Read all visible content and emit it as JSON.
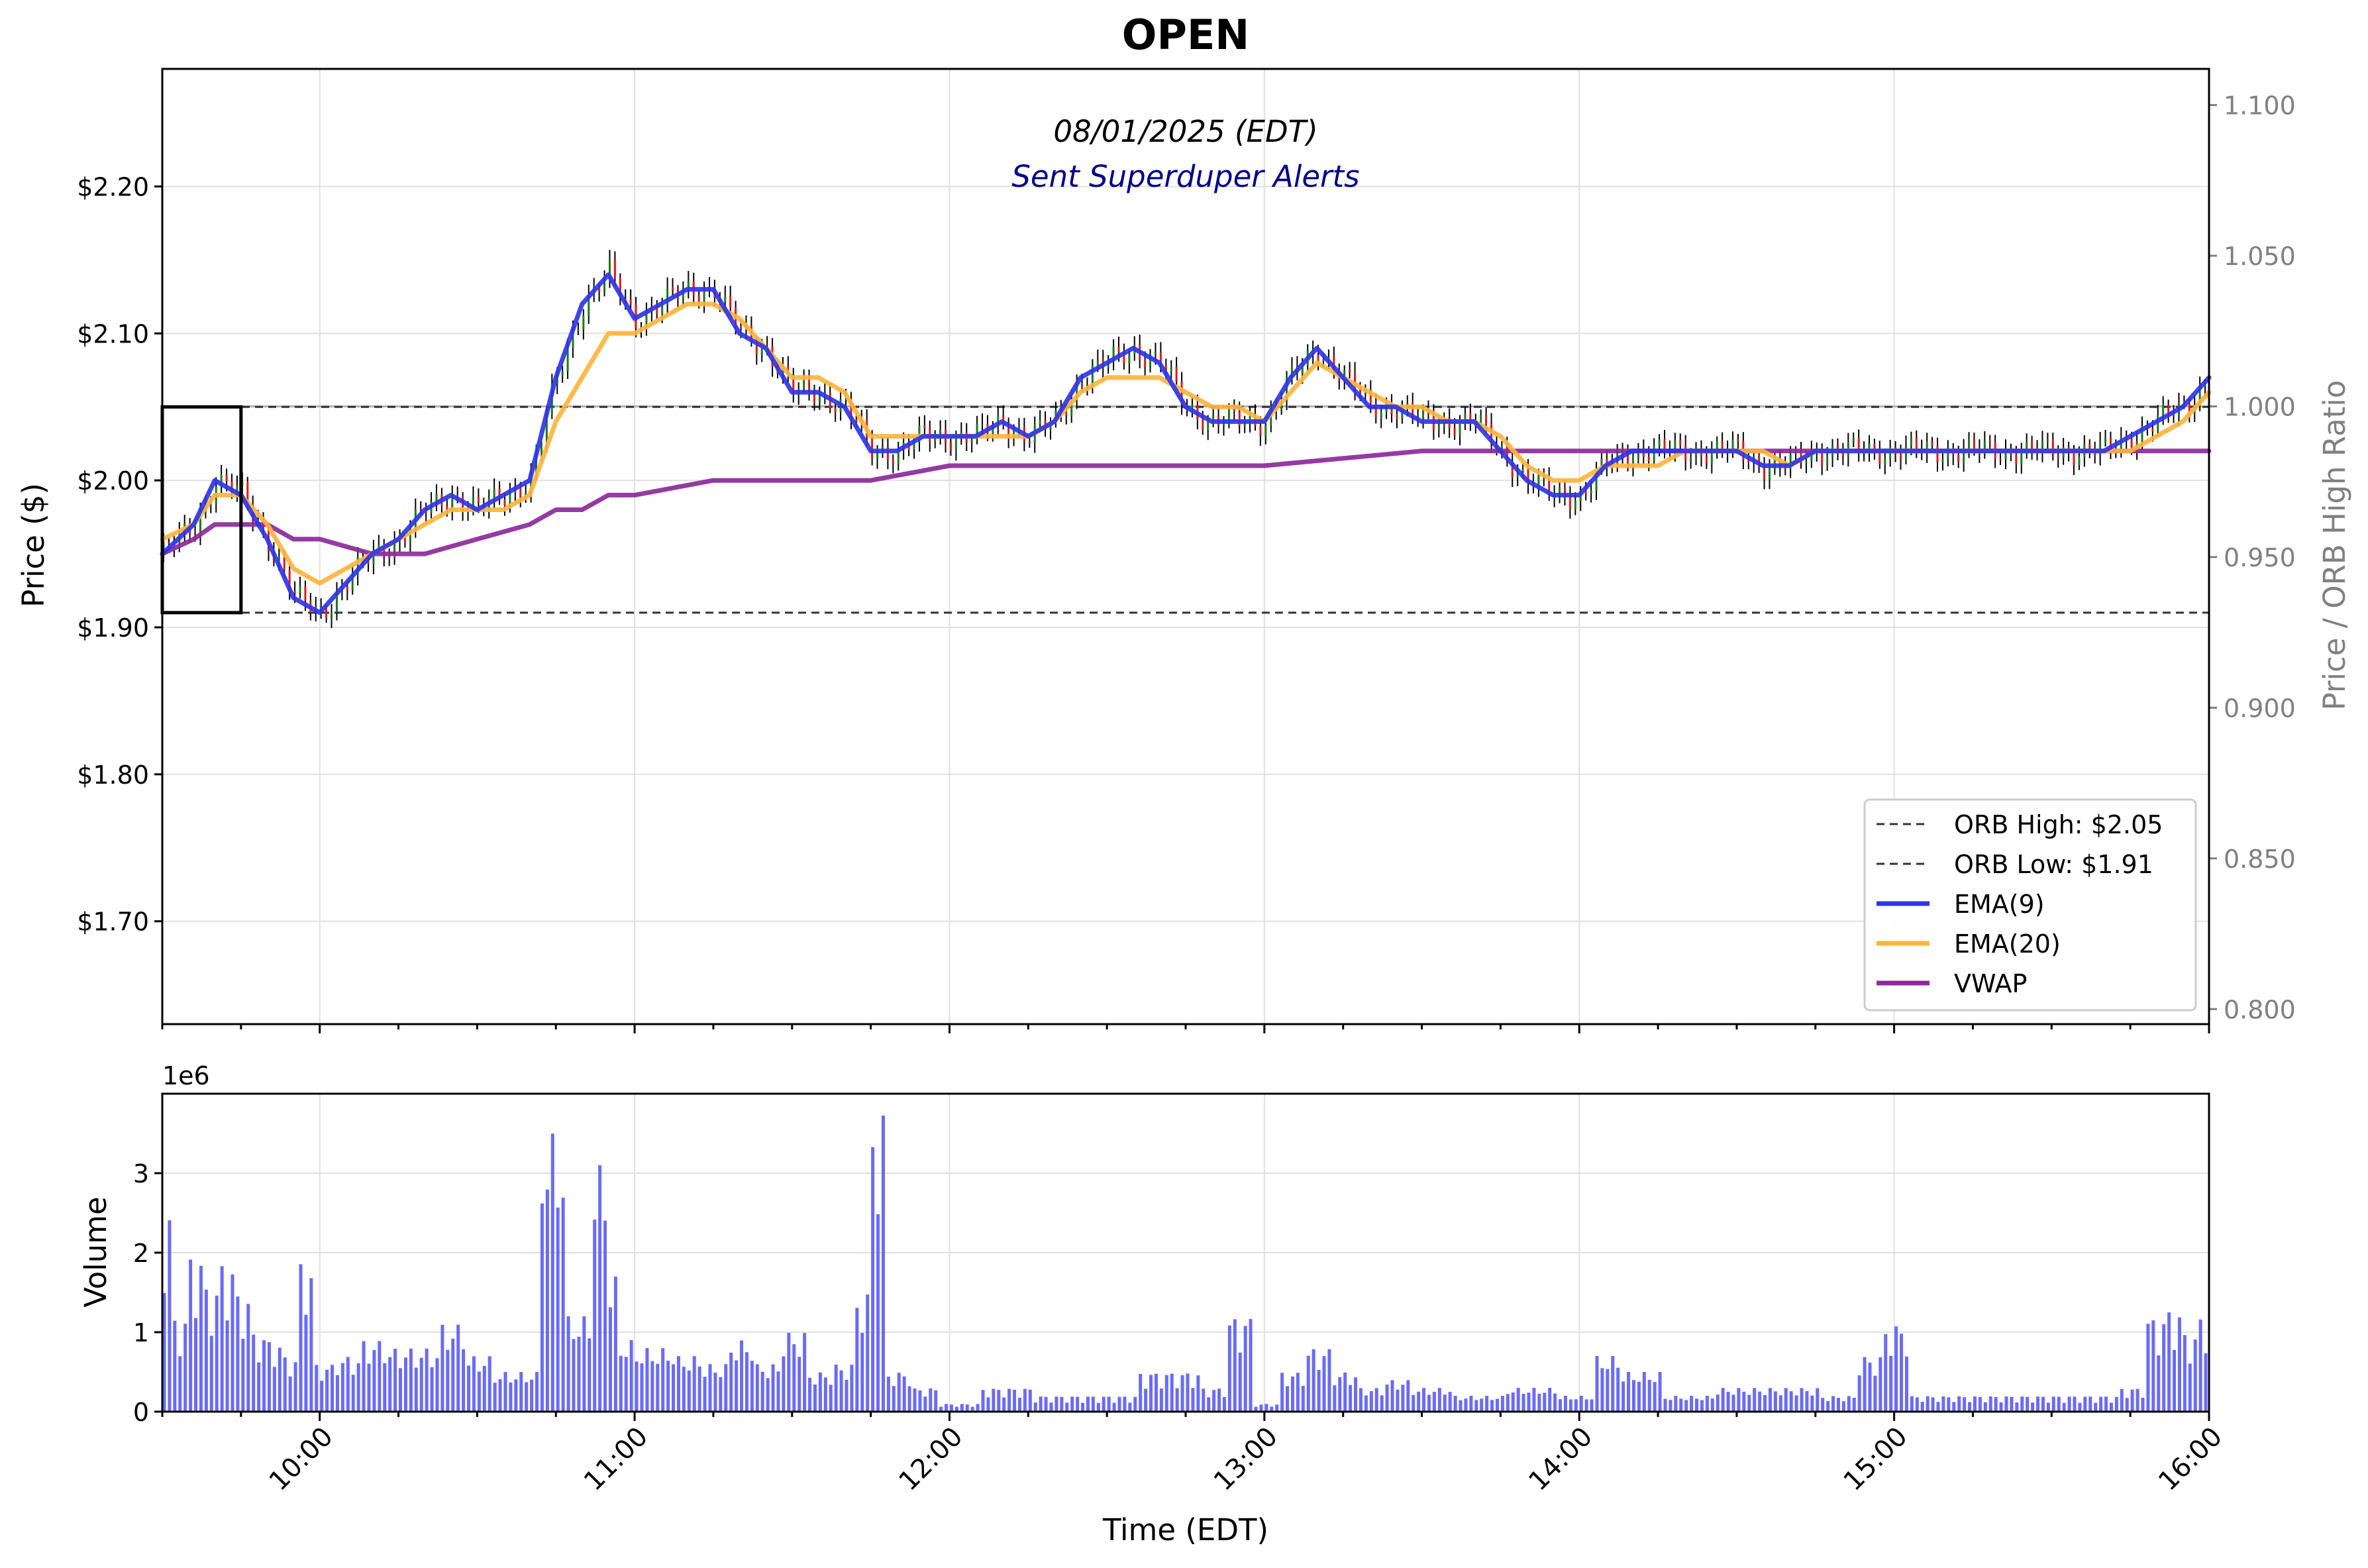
{
  "title": "OPEN",
  "subtitle": "08/01/2025 (EDT)",
  "alert_text": "Sent Superduper Alerts",
  "colors": {
    "ema9": "#2f35e6",
    "ema20": "#fdb43f",
    "vwap": "#8b2a9a",
    "volume": "#5b5bf5",
    "candle_up": "#1a7a1a",
    "candle_down": "#e01818",
    "alert_text": "#00008b",
    "right_axis": "#808080"
  },
  "chart_data": [
    {
      "type": "line",
      "title": "OPEN",
      "subtitle": "08/01/2025 (EDT)",
      "ylabel": "Price ($)",
      "y2label": "Price / ORB High Ratio",
      "ylim": [
        1.63,
        2.28
      ],
      "y2lim": [
        0.795,
        1.112
      ],
      "yticks": [
        1.7,
        1.8,
        1.9,
        2.0,
        2.1,
        2.2
      ],
      "ytick_labels": [
        "$1.70",
        "$1.80",
        "$1.90",
        "$2.00",
        "$2.10",
        "$2.20"
      ],
      "y2ticks": [
        0.8,
        0.85,
        0.9,
        0.95,
        1.0,
        1.05,
        1.1
      ],
      "y2tick_labels": [
        "0.800",
        "0.850",
        "0.900",
        "0.950",
        "1.000",
        "1.050",
        "1.100"
      ],
      "xlim": [
        "09:30",
        "16:00"
      ],
      "grid": true,
      "legend_position": "bottom-right",
      "orb_box": {
        "start": "09:30",
        "end": "09:45",
        "low": 1.91,
        "high": 2.05
      },
      "hlines": [
        {
          "name": "ORB High: $2.05",
          "value": 2.05,
          "style": "dashed"
        },
        {
          "name": "ORB Low: $1.91",
          "value": 1.91,
          "style": "dashed"
        }
      ],
      "ratio_reference": 1.0,
      "series": [
        {
          "name": "EMA(9)",
          "x": [
            "09:30",
            "09:36",
            "09:40",
            "09:45",
            "09:50",
            "09:55",
            "10:00",
            "10:05",
            "10:10",
            "10:15",
            "10:20",
            "10:25",
            "10:30",
            "10:35",
            "10:40",
            "10:45",
            "10:50",
            "10:55",
            "11:00",
            "11:05",
            "11:10",
            "11:15",
            "11:20",
            "11:25",
            "11:30",
            "11:35",
            "11:40",
            "11:45",
            "11:50",
            "11:55",
            "12:00",
            "12:05",
            "12:10",
            "12:15",
            "12:20",
            "12:25",
            "12:30",
            "12:35",
            "12:40",
            "12:45",
            "12:50",
            "12:55",
            "13:00",
            "13:05",
            "13:10",
            "13:15",
            "13:20",
            "13:25",
            "13:30",
            "13:35",
            "13:40",
            "13:45",
            "13:50",
            "13:55",
            "14:00",
            "14:05",
            "14:10",
            "14:15",
            "14:20",
            "14:25",
            "14:30",
            "14:35",
            "14:40",
            "14:45",
            "14:50",
            "14:55",
            "15:00",
            "15:05",
            "15:10",
            "15:15",
            "15:20",
            "15:25",
            "15:30",
            "15:35",
            "15:40",
            "15:45",
            "15:50",
            "15:55",
            "16:00"
          ],
          "values": [
            1.95,
            1.97,
            2.0,
            1.99,
            1.96,
            1.92,
            1.91,
            1.93,
            1.95,
            1.96,
            1.98,
            1.99,
            1.98,
            1.99,
            2.0,
            2.07,
            2.12,
            2.14,
            2.11,
            2.12,
            2.13,
            2.13,
            2.1,
            2.09,
            2.06,
            2.06,
            2.05,
            2.02,
            2.02,
            2.03,
            2.03,
            2.03,
            2.04,
            2.03,
            2.04,
            2.07,
            2.08,
            2.09,
            2.08,
            2.05,
            2.04,
            2.04,
            2.04,
            2.07,
            2.09,
            2.07,
            2.05,
            2.05,
            2.04,
            2.04,
            2.04,
            2.02,
            2.0,
            1.99,
            1.99,
            2.01,
            2.02,
            2.02,
            2.02,
            2.02,
            2.02,
            2.01,
            2.01,
            2.02,
            2.02,
            2.02,
            2.02,
            2.02,
            2.02,
            2.02,
            2.02,
            2.02,
            2.02,
            2.02,
            2.02,
            2.03,
            2.04,
            2.05,
            2.07
          ]
        },
        {
          "name": "EMA(20)",
          "x": [
            "09:30",
            "09:36",
            "09:40",
            "09:45",
            "09:50",
            "09:55",
            "10:00",
            "10:05",
            "10:10",
            "10:15",
            "10:20",
            "10:25",
            "10:30",
            "10:35",
            "10:40",
            "10:45",
            "10:50",
            "10:55",
            "11:00",
            "11:05",
            "11:10",
            "11:15",
            "11:20",
            "11:25",
            "11:30",
            "11:35",
            "11:40",
            "11:45",
            "11:50",
            "11:55",
            "12:00",
            "12:05",
            "12:10",
            "12:15",
            "12:20",
            "12:25",
            "12:30",
            "12:35",
            "12:40",
            "12:45",
            "12:50",
            "12:55",
            "13:00",
            "13:05",
            "13:10",
            "13:15",
            "13:20",
            "13:25",
            "13:30",
            "13:35",
            "13:40",
            "13:45",
            "13:50",
            "13:55",
            "14:00",
            "14:05",
            "14:10",
            "14:15",
            "14:20",
            "14:25",
            "14:30",
            "14:35",
            "14:40",
            "14:45",
            "14:50",
            "14:55",
            "15:00",
            "15:05",
            "15:10",
            "15:15",
            "15:20",
            "15:25",
            "15:30",
            "15:35",
            "15:40",
            "15:45",
            "15:50",
            "15:55",
            "16:00"
          ],
          "values": [
            1.96,
            1.97,
            1.99,
            1.99,
            1.97,
            1.94,
            1.93,
            1.94,
            1.95,
            1.96,
            1.97,
            1.98,
            1.98,
            1.98,
            1.99,
            2.04,
            2.07,
            2.1,
            2.1,
            2.11,
            2.12,
            2.12,
            2.11,
            2.09,
            2.07,
            2.07,
            2.06,
            2.03,
            2.03,
            2.03,
            2.03,
            2.03,
            2.03,
            2.03,
            2.04,
            2.06,
            2.07,
            2.07,
            2.07,
            2.06,
            2.05,
            2.05,
            2.04,
            2.06,
            2.08,
            2.07,
            2.06,
            2.05,
            2.05,
            2.04,
            2.04,
            2.03,
            2.01,
            2.0,
            2.0,
            2.01,
            2.01,
            2.01,
            2.02,
            2.02,
            2.02,
            2.02,
            2.01,
            2.02,
            2.02,
            2.02,
            2.02,
            2.02,
            2.02,
            2.02,
            2.02,
            2.02,
            2.02,
            2.02,
            2.02,
            2.02,
            2.03,
            2.04,
            2.06
          ]
        },
        {
          "name": "VWAP",
          "x": [
            "09:30",
            "09:36",
            "09:40",
            "09:45",
            "09:50",
            "09:55",
            "10:00",
            "10:10",
            "10:20",
            "10:30",
            "10:40",
            "10:45",
            "10:50",
            "10:55",
            "11:00",
            "11:15",
            "11:30",
            "11:45",
            "12:00",
            "12:30",
            "13:00",
            "13:30",
            "14:00",
            "14:30",
            "15:00",
            "15:30",
            "16:00"
          ],
          "values": [
            1.95,
            1.96,
            1.97,
            1.97,
            1.97,
            1.96,
            1.96,
            1.95,
            1.95,
            1.96,
            1.97,
            1.98,
            1.98,
            1.99,
            1.99,
            2.0,
            2.0,
            2.0,
            2.01,
            2.01,
            2.01,
            2.02,
            2.02,
            2.02,
            2.02,
            2.02,
            2.02
          ]
        }
      ]
    },
    {
      "type": "bar",
      "xlabel": "Time (EDT)",
      "ylabel": "Volume",
      "scale_label": "1e6",
      "ylim": [
        0,
        4.0
      ],
      "yticks": [
        0,
        1,
        2,
        3
      ],
      "xticks": [
        "10:00",
        "11:00",
        "12:00",
        "13:00",
        "14:00",
        "15:00",
        "16:00"
      ],
      "grid": true,
      "x": [
        "09:30",
        "09:33",
        "09:36",
        "09:39",
        "09:42",
        "09:45",
        "09:48",
        "09:51",
        "09:54",
        "09:57",
        "10:00",
        "10:05",
        "10:10",
        "10:15",
        "10:20",
        "10:25",
        "10:30",
        "10:35",
        "10:40",
        "10:43",
        "10:45",
        "10:47",
        "10:50",
        "10:53",
        "10:55",
        "10:58",
        "11:00",
        "11:05",
        "11:10",
        "11:15",
        "11:20",
        "11:25",
        "11:30",
        "11:35",
        "11:40",
        "11:43",
        "11:45",
        "11:50",
        "11:55",
        "12:00",
        "12:10",
        "12:20",
        "12:30",
        "12:40",
        "12:45",
        "12:50",
        "12:55",
        "13:00",
        "13:05",
        "13:10",
        "13:15",
        "13:20",
        "13:25",
        "13:30",
        "13:40",
        "13:50",
        "14:00",
        "14:05",
        "14:10",
        "14:20",
        "14:30",
        "14:40",
        "14:50",
        "14:55",
        "15:00",
        "15:05",
        "15:15",
        "15:30",
        "15:40",
        "15:45",
        "15:50",
        "15:53",
        "15:56",
        "15:59"
      ],
      "values": [
        2.6,
        1.2,
        2.0,
        1.6,
        1.9,
        1.5,
        1.0,
        0.9,
        0.7,
        1.9,
        0.6,
        0.7,
        0.9,
        0.8,
        0.8,
        1.1,
        0.7,
        0.5,
        0.5,
        3.5,
        3.4,
        1.2,
        1.2,
        3.1,
        1.7,
        0.9,
        0.8,
        0.8,
        0.7,
        0.6,
        0.9,
        0.6,
        1.0,
        0.5,
        0.6,
        1.5,
        3.8,
        0.5,
        0.3,
        0.1,
        0.3,
        0.2,
        0.2,
        0.5,
        0.5,
        0.3,
        1.2,
        0.1,
        0.5,
        0.8,
        0.5,
        0.3,
        0.4,
        0.3,
        0.2,
        0.3,
        0.2,
        0.7,
        0.5,
        0.2,
        0.3,
        0.3,
        0.2,
        0.7,
        1.1,
        0.2,
        0.2,
        0.2,
        0.2,
        0.3,
        1.2,
        1.3,
        1.0,
        1.2
      ]
    }
  ],
  "legend": [
    {
      "label": "ORB High: $2.05",
      "style": "dashed"
    },
    {
      "label": "ORB Low: $1.91",
      "style": "dashed"
    },
    {
      "label": "EMA(9)",
      "style": "solid-blue"
    },
    {
      "label": "EMA(20)",
      "style": "solid-orange"
    },
    {
      "label": "VWAP",
      "style": "solid-purple"
    }
  ]
}
